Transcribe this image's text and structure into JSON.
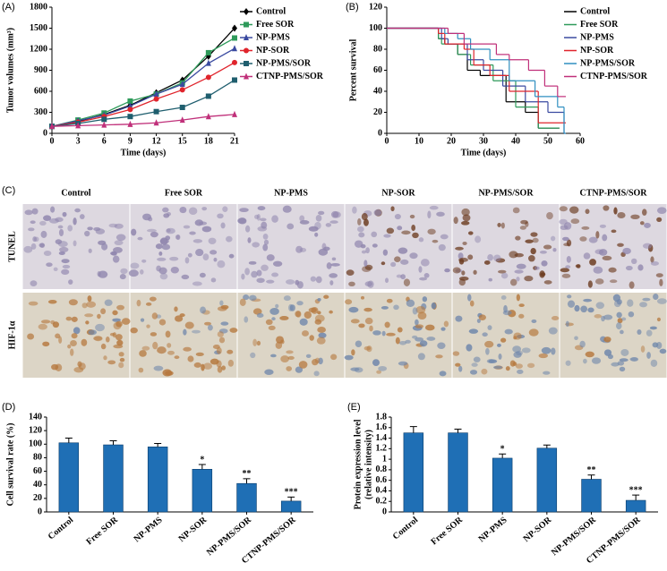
{
  "chart_data": [
    {
      "type": "line",
      "panel": "(A)",
      "x_label": "Time (days)",
      "y_label": "Tumor volumes (mm³)",
      "x": [
        0,
        3,
        6,
        9,
        12,
        15,
        18,
        21
      ],
      "xlim": [
        0,
        21
      ],
      "xticks": [
        0,
        3,
        6,
        9,
        12,
        15,
        18,
        21
      ],
      "ylim": [
        0,
        1800
      ],
      "yticks": [
        0,
        300,
        600,
        900,
        1200,
        1500,
        1800
      ],
      "legend": "right",
      "series": [
        {
          "name": "Control",
          "color": "#000000",
          "values": [
            100,
            170,
            270,
            400,
            580,
            760,
            1100,
            1500
          ]
        },
        {
          "name": "Free SOR",
          "color": "#2e9a5a",
          "values": [
            100,
            190,
            290,
            460,
            560,
            720,
            1150,
            1360
          ]
        },
        {
          "name": "NP-PMS",
          "color": "#3a4aa0",
          "values": [
            100,
            180,
            260,
            390,
            560,
            700,
            1000,
            1210
          ]
        },
        {
          "name": "NP-SOR",
          "color": "#e0242c",
          "values": [
            100,
            160,
            240,
            340,
            490,
            620,
            800,
            1010
          ]
        },
        {
          "name": "NP-PMS/SOR",
          "color": "#1f5e6e",
          "values": [
            100,
            140,
            200,
            240,
            310,
            370,
            530,
            760
          ]
        },
        {
          "name": "CTNP-PMS/SOR",
          "color": "#c0307a",
          "values": [
            100,
            110,
            120,
            130,
            150,
            190,
            240,
            270
          ]
        }
      ]
    },
    {
      "type": "step",
      "panel": "(B)",
      "x_label": "Time (days)",
      "y_label": "Percent survival",
      "xlim": [
        0,
        60
      ],
      "xticks": [
        0,
        10,
        20,
        30,
        40,
        50,
        60
      ],
      "ylim": [
        0,
        120
      ],
      "yticks": [
        0,
        20,
        40,
        60,
        80,
        100,
        120
      ],
      "legend": "upper right",
      "series": [
        {
          "name": "Control",
          "color": "#000000",
          "x": [
            0,
            16,
            18,
            22,
            25,
            29,
            37,
            43,
            47,
            53
          ],
          "values": [
            100,
            90,
            85,
            75,
            60,
            55,
            30,
            20,
            5,
            5
          ]
        },
        {
          "name": "Free SOR",
          "color": "#2e9a5a",
          "x": [
            0,
            16,
            17,
            22,
            26,
            33,
            40,
            47,
            53
          ],
          "values": [
            100,
            90,
            85,
            75,
            65,
            50,
            25,
            5,
            5
          ]
        },
        {
          "name": "NP-PMS",
          "color": "#3a4aa0",
          "x": [
            0,
            17,
            19,
            25,
            30,
            36,
            43,
            50,
            55
          ],
          "values": [
            100,
            90,
            85,
            70,
            60,
            45,
            30,
            20,
            0
          ]
        },
        {
          "name": "NP-SOR",
          "color": "#e0242c",
          "x": [
            0,
            16,
            18,
            24,
            27,
            32,
            38,
            47,
            55
          ],
          "values": [
            100,
            95,
            85,
            80,
            65,
            55,
            40,
            10,
            10
          ]
        },
        {
          "name": "NP-PMS/SOR",
          "color": "#2f8fc0",
          "x": [
            0,
            18,
            22,
            26,
            32,
            38,
            46,
            53,
            55
          ],
          "values": [
            100,
            95,
            90,
            80,
            70,
            50,
            35,
            25,
            0
          ]
        },
        {
          "name": "CTNP-PMS/SOR",
          "color": "#c0307a",
          "x": [
            0,
            19,
            24,
            34,
            38,
            44,
            49,
            53,
            55
          ],
          "values": [
            100,
            95,
            85,
            75,
            70,
            60,
            45,
            35,
            35
          ]
        }
      ]
    },
    {
      "type": "image_grid",
      "panel": "(C)",
      "columns": [
        "Control",
        "Free SOR",
        "NP-PMS",
        "NP-SOR",
        "NP-PMS/SOR",
        "CTNP-PMS/SOR"
      ],
      "rows": [
        "TUNEL",
        "HIF-1α"
      ]
    },
    {
      "type": "bar",
      "panel": "(D)",
      "y_label": "Cell survival rate (%)",
      "color": "#1f6fb5",
      "categories": [
        "Control",
        "Free SOR",
        "NP-PMS",
        "NP-SOR",
        "NP-PMS/SOR",
        "CTNP-PMS/SOR"
      ],
      "values": [
        102,
        99,
        96,
        63,
        42,
        16
      ],
      "errors": [
        7,
        6,
        5,
        7,
        7,
        6
      ],
      "significance": [
        null,
        null,
        null,
        "*",
        "**",
        "***"
      ],
      "ylim": [
        0,
        140
      ],
      "yticks": [
        0,
        20,
        40,
        60,
        80,
        100,
        120,
        140
      ]
    },
    {
      "type": "bar",
      "panel": "(E)",
      "y_label": [
        "Protein expression level",
        "(relative intensity)"
      ],
      "color": "#1f6fb5",
      "categories": [
        "Control",
        "Free SOR",
        "NP-PMS",
        "NP-SOR",
        "NP-PMS/SOR",
        "CTNP-PMS/SOR"
      ],
      "values": [
        1.5,
        1.5,
        1.02,
        1.21,
        0.62,
        0.22
      ],
      "errors": [
        0.12,
        0.07,
        0.08,
        0.06,
        0.08,
        0.1
      ],
      "significance": [
        null,
        null,
        "*",
        null,
        "**",
        "***"
      ],
      "ylim": [
        0,
        1.8
      ],
      "yticks": [
        0,
        0.2,
        0.4,
        0.6,
        0.8,
        1,
        1.2,
        1.4,
        1.6,
        1.8
      ]
    }
  ]
}
